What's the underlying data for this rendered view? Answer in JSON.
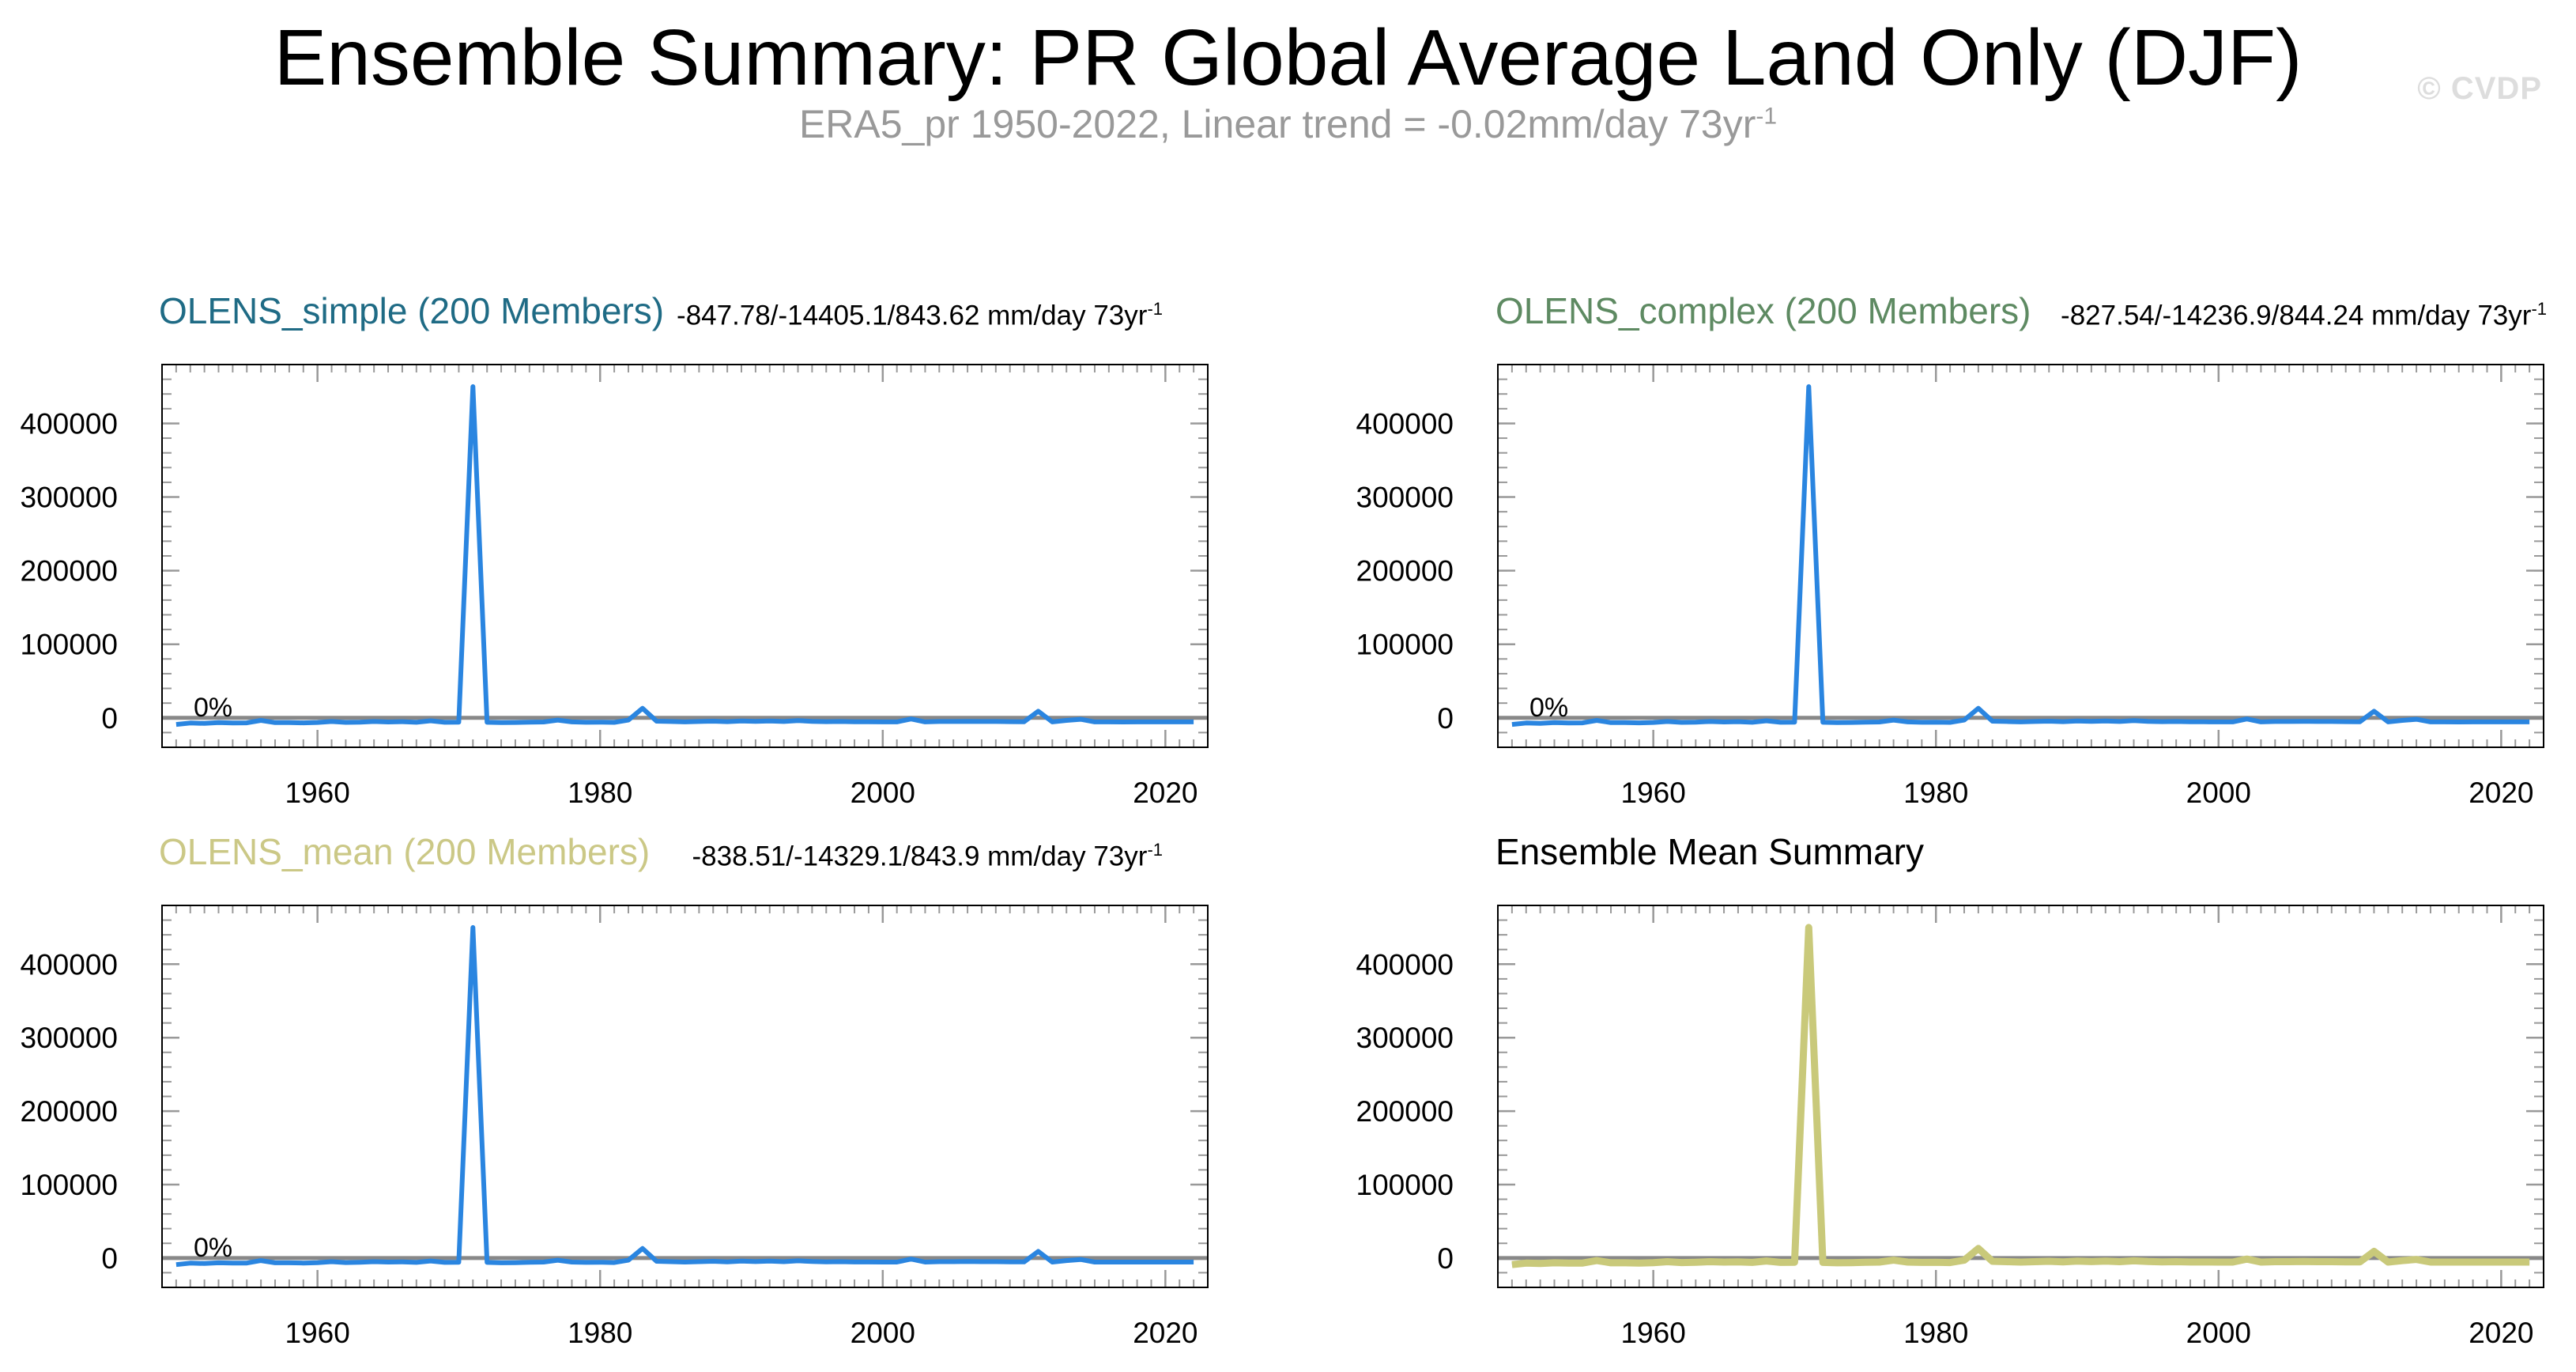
{
  "figure": {
    "title": "Ensemble Summary: PR Global Average Land Only (DJF)",
    "subtitle": "ERA5_pr 1950-2022, Linear trend = -0.02mm/day 73yr",
    "subtitle_sup": "-1",
    "watermark": "© CVDP"
  },
  "colors": {
    "line_blue": "#2a85e0",
    "line_mean": "#c9c97a",
    "zero_line": "#888888",
    "axis": "#000000",
    "tick": "#999999",
    "title_simple": "#1f6b85",
    "title_complex": "#5e8a62",
    "title_mean": "#cbc886",
    "title_summary": "#000000"
  },
  "panels": [
    {
      "title": "OLENS_simple (200 Members)",
      "title_color_key": "title_simple",
      "stats": "-847.78/-14405.1/843.62 mm/day 73yr",
      "stats_sup": "-1",
      "pct_label": "0%",
      "mode": "obs"
    },
    {
      "title": "OLENS_complex (200 Members)",
      "title_color_key": "title_complex",
      "stats": "-827.54/-14236.9/844.24 mm/day 73yr",
      "stats_sup": "-1",
      "pct_label": "0%",
      "mode": "obs"
    },
    {
      "title": "OLENS_mean (200 Members)",
      "title_color_key": "title_mean",
      "stats": "-838.51/-14329.1/843.9 mm/day 73yr",
      "stats_sup": "-1",
      "pct_label": "0%",
      "mode": "obs"
    },
    {
      "title": "Ensemble Mean Summary",
      "title_color_key": "title_summary",
      "stats": "",
      "stats_sup": "",
      "pct_label": "",
      "mode": "summary"
    }
  ],
  "chart_data": {
    "type": "line",
    "title": "Ensemble Summary: PR Global Average Land Only (DJF)",
    "xlim": [
      1949,
      2023
    ],
    "ylim": [
      -40000,
      480000
    ],
    "x_ticks": [
      1960,
      1980,
      2000,
      2020
    ],
    "y_ticks": [
      0,
      100000,
      200000,
      300000,
      400000
    ],
    "reference_line": 0,
    "x": [
      1950,
      1951,
      1952,
      1953,
      1954,
      1955,
      1956,
      1957,
      1958,
      1959,
      1960,
      1961,
      1962,
      1963,
      1964,
      1965,
      1966,
      1967,
      1968,
      1969,
      1970,
      1971,
      1972,
      1973,
      1974,
      1975,
      1976,
      1977,
      1978,
      1979,
      1980,
      1981,
      1982,
      1983,
      1984,
      1985,
      1986,
      1987,
      1988,
      1989,
      1990,
      1991,
      1992,
      1993,
      1994,
      1995,
      1996,
      1997,
      1998,
      1999,
      2000,
      2001,
      2002,
      2003,
      2004,
      2005,
      2006,
      2007,
      2008,
      2009,
      2010,
      2011,
      2012,
      2013,
      2014,
      2015,
      2016,
      2017,
      2018,
      2019,
      2020,
      2021,
      2022
    ],
    "series": [
      {
        "name": "ERA5_pr",
        "values": [
          -9000,
          -7000,
          -7500,
          -6500,
          -7000,
          -6800,
          -3500,
          -6500,
          -6500,
          -6800,
          -6300,
          -5000,
          -6200,
          -5800,
          -5000,
          -5600,
          -5200,
          -6000,
          -4000,
          -6000,
          -5800,
          450000,
          -6000,
          -6500,
          -6300,
          -5800,
          -5600,
          -3000,
          -5500,
          -6000,
          -5800,
          -6200,
          -3000,
          13000,
          -4500,
          -5000,
          -5500,
          -5000,
          -4500,
          -5200,
          -4200,
          -4900,
          -4200,
          -5000,
          -3800,
          -4800,
          -5200,
          -5000,
          -5400,
          -5400,
          -5500,
          -5500,
          -1500,
          -5500,
          -5000,
          -5000,
          -4800,
          -5000,
          -5000,
          -5200,
          -5300,
          9000,
          -5500,
          -3500,
          -2000,
          -5500,
          -5500,
          -5600,
          -5500,
          -5500,
          -5500,
          -5500,
          -5500
        ]
      }
    ]
  }
}
